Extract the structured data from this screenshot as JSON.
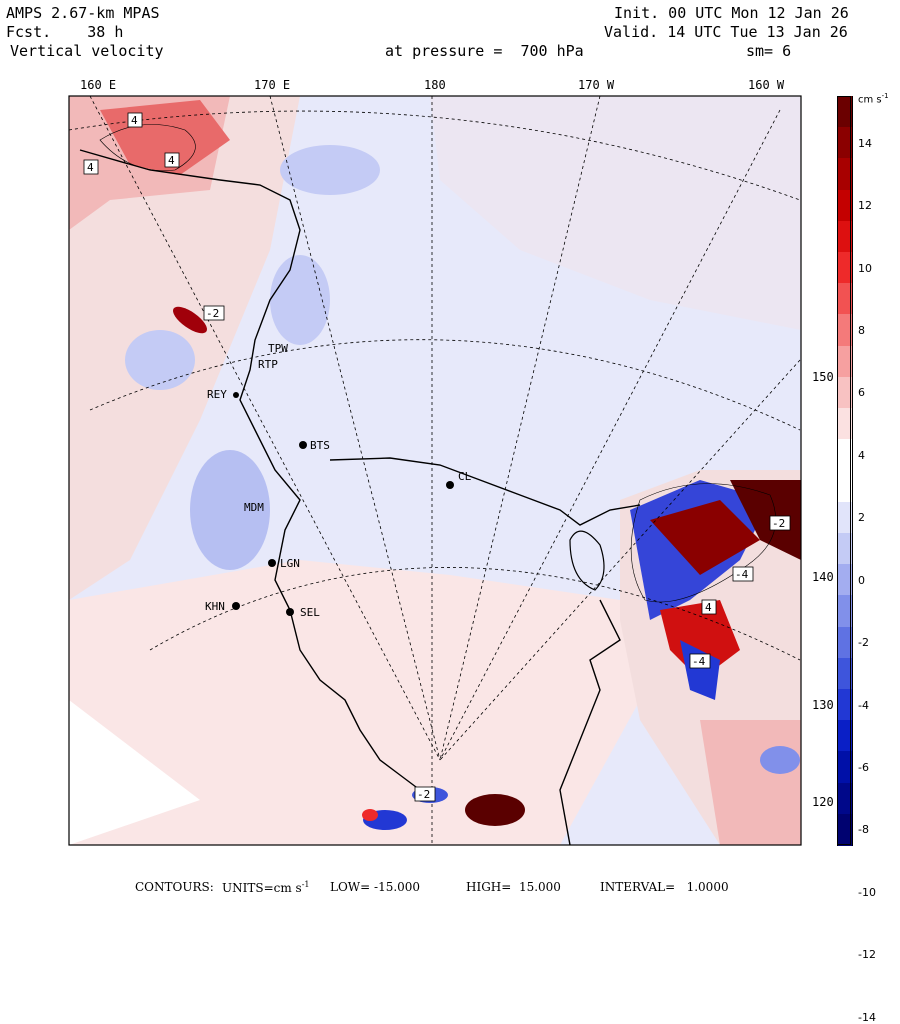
{
  "header": {
    "model": "AMPS 2.67-km MPAS",
    "fcst": "Fcst.    38 h",
    "field": "Vertical velocity",
    "init": "Init. 00 UTC Mon 12 Jan 26",
    "valid": "Valid. 14 UTC Tue 13 Jan 26",
    "pressure": "at pressure =  700 hPa",
    "smooth": "sm= 6"
  },
  "lon_labels": [
    "160 E",
    "170 E",
    "180",
    "170 W",
    "160 W"
  ],
  "lat_labels": [
    "150 W",
    "140 W",
    "130 W",
    "120 W"
  ],
  "stations": [
    "TPW",
    "RTP",
    "REY",
    "BTS",
    "CL",
    "MDM",
    "LGN",
    "SEL",
    "KHN"
  ],
  "contour_labels": [
    "4",
    "-2",
    "4",
    "-4",
    "4",
    "-2",
    "-4",
    "-2",
    "4"
  ],
  "colorbar": {
    "units": "cm s",
    "units_exp": "-1",
    "ticks": [
      "14",
      "12",
      "10",
      "8",
      "6",
      "4",
      "2",
      "0",
      "-2",
      "-4",
      "-6",
      "-8",
      "-10",
      "-12",
      "-14"
    ],
    "colors": [
      "#6b0000",
      "#8b0000",
      "#a80000",
      "#c40000",
      "#dd1010",
      "#ee2a2a",
      "#f25252",
      "#f47a7a",
      "#f6a0a0",
      "#f8c2c2",
      "#fbe1e1",
      "#ffffff",
      "#ffffff",
      "#e1e4fa",
      "#c4cbf5",
      "#a3adf0",
      "#8190ea",
      "#5f72e3",
      "#3e55dc",
      "#2238d4",
      "#0a1fc6",
      "#0010a8",
      "#00088a",
      "#000270"
    ]
  },
  "footer": {
    "contours": "CONTOURS:",
    "units": "UNITS=cm s",
    "units_exp": "-1",
    "low": "LOW= -15.000",
    "high": "HIGH=  15.000",
    "interval": "INTERVAL=   1.0000"
  }
}
